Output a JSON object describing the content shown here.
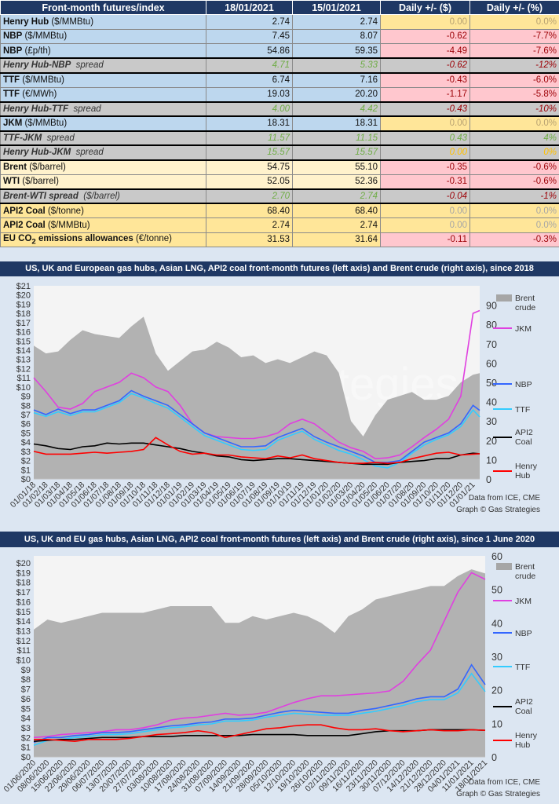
{
  "table": {
    "headers": [
      "Front-month futures/index",
      "18/01/2021",
      "15/01/2021",
      "Daily +/- ($)",
      "Daily +/- (%)"
    ],
    "rows": [
      {
        "type": "blue",
        "bold": "Henry Hub",
        "rest": " ($/MMBtu)",
        "v1": "2.74",
        "v2": "2.74",
        "d": "0.00",
        "p": "0.0%",
        "dc": "zero"
      },
      {
        "type": "blue",
        "bold": "NBP",
        "rest": " ($/MMBtu)",
        "v1": "7.45",
        "v2": "8.07",
        "d": "-0.62",
        "p": "-7.7%",
        "dc": "neg"
      },
      {
        "type": "blue",
        "bold": "NBP",
        "rest": " (£p/th)",
        "v1": "54.86",
        "v2": "59.35",
        "d": "-4.49",
        "p": "-7.6%",
        "dc": "neg"
      },
      {
        "type": "spread",
        "bold": "Henry Hub-NBP",
        "rest": "  spread",
        "v1": "4.71",
        "v2": "5.33",
        "d": "-0.62",
        "p": "-12%",
        "dc": "dneg"
      },
      {
        "type": "blue",
        "bold": "TTF",
        "rest": " ($/MMBtu)",
        "v1": "6.74",
        "v2": "7.16",
        "d": "-0.43",
        "p": "-6.0%",
        "dc": "neg"
      },
      {
        "type": "blue",
        "bold": "TTF",
        "rest": " (€/MWh)",
        "v1": "19.03",
        "v2": "20.20",
        "d": "-1.17",
        "p": "-5.8%",
        "dc": "neg"
      },
      {
        "type": "spread",
        "bold": "Henry Hub-TTF",
        "rest": "  spread",
        "v1": "4.00",
        "v2": "4.42",
        "d": "-0.43",
        "p": "-10%",
        "dc": "dneg"
      },
      {
        "type": "blue",
        "bold": "JKM",
        "rest": " ($/MMBtu)",
        "v1": "18.31",
        "v2": "18.31",
        "d": "0.00",
        "p": "0.0%",
        "dc": "zero"
      },
      {
        "type": "spread",
        "bold": "TTF-JKM",
        "rest": "  spread",
        "v1": "11.57",
        "v2": "11.15",
        "d": "0.43",
        "p": "4%",
        "dc": "dpos"
      },
      {
        "type": "spread",
        "bold": "Henry Hub-JKM",
        "rest": "  spread",
        "v1": "15.57",
        "v2": "15.57",
        "d": "0.00",
        "p": "0%",
        "dc": "dzero"
      },
      {
        "type": "oil",
        "bold": "Brent",
        "rest": " ($/barrel)",
        "v1": "54.75",
        "v2": "55.10",
        "d": "-0.35",
        "p": "-0.6%",
        "dc": "neg"
      },
      {
        "type": "oil",
        "bold": "WTI",
        "rest": " ($/barrel)",
        "v1": "52.05",
        "v2": "52.36",
        "d": "-0.31",
        "p": "-0.6%",
        "dc": "neg"
      },
      {
        "type": "spread",
        "bold": "Brent-WTI spread",
        "rest": "  ($/barrel)",
        "v1": "2.70",
        "v2": "2.74",
        "d": "-0.04",
        "p": "-1%",
        "dc": "dneg"
      },
      {
        "type": "coal",
        "bold": "API2 Coal",
        "rest": " ($/tonne)",
        "v1": "68.40",
        "v2": "68.40",
        "d": "0.00",
        "p": "0.0%",
        "dc": "zero"
      },
      {
        "type": "coal",
        "bold": "API2 Coal",
        "rest": " ($/MMBtu)",
        "v1": "2.74",
        "v2": "2.74",
        "d": "0.00",
        "p": "0.0%",
        "dc": "zero"
      },
      {
        "type": "coal",
        "bold": "EU CO",
        "sub": "2",
        "bold2": " emissions allowances",
        "rest": " (€/tonne)",
        "v1": "31.53",
        "v2": "31.64",
        "d": "-0.11",
        "p": "-0.3%",
        "dc": "neg"
      }
    ]
  },
  "colors": {
    "header": "#1f3864",
    "brent": "#a6a6a6",
    "jkm": "#e040e0",
    "nbp": "#3366ff",
    "ttf": "#33ccff",
    "coal": "#000000",
    "hh": "#ff0000"
  },
  "watermark": "Gas Strategies",
  "chart_data": [
    {
      "type": "line",
      "title": "US, UK and European gas hubs, Asian LNG, API2 coal front-month futures (left axis) and Brent crude (right axis), since 2018",
      "ylim_left": [
        0,
        21
      ],
      "ylim_right": [
        0,
        100
      ],
      "left_ticks": [
        "$0",
        "$1",
        "$2",
        "$3",
        "$4",
        "$5",
        "$6",
        "$7",
        "$8",
        "$9",
        "$10",
        "$11",
        "$12",
        "$13",
        "$14",
        "$15",
        "$16",
        "$17",
        "$18",
        "$19",
        "$20",
        "$21"
      ],
      "right_ticks": [
        "0",
        "10",
        "20",
        "30",
        "40",
        "50",
        "60",
        "70",
        "80",
        "90"
      ],
      "x_ticks": [
        "01/01/18",
        "01/02/18",
        "01/03/18",
        "01/04/18",
        "01/05/18",
        "01/06/18",
        "01/07/18",
        "01/08/18",
        "01/09/18",
        "01/10/18",
        "01/11/18",
        "01/12/18",
        "01/01/19",
        "01/02/19",
        "01/03/19",
        "01/04/19",
        "01/05/19",
        "01/06/19",
        "01/07/19",
        "01/08/19",
        "01/09/19",
        "01/10/19",
        "01/11/19",
        "01/12/19",
        "01/01/20",
        "01/02/20",
        "01/03/20",
        "01/04/20",
        "01/05/20",
        "01/06/20",
        "01/07/20",
        "01/08/20",
        "01/09/20",
        "01/10/20",
        "01/11/20",
        "01/12/20",
        "01/01/21"
      ],
      "x_end": "18/01/21",
      "series": [
        {
          "name": "Brent crude",
          "axis": "right",
          "kind": "area",
          "values": [
            69,
            65,
            66,
            72,
            77,
            75,
            74,
            73,
            79,
            84,
            65,
            56,
            61,
            66,
            67,
            71,
            68,
            63,
            64,
            60,
            62,
            60,
            63,
            66,
            64,
            55,
            30,
            22,
            33,
            41,
            43,
            45,
            41,
            41,
            43,
            50,
            54,
            54.75
          ]
        },
        {
          "name": "JKM",
          "axis": "left",
          "values": [
            11,
            9.5,
            7.8,
            7.6,
            8.2,
            9.5,
            10,
            10.5,
            11.5,
            11,
            10,
            9.5,
            8,
            6,
            5,
            4.6,
            4.5,
            4.4,
            4.4,
            4.6,
            5,
            6,
            6.5,
            6,
            5,
            4,
            3.4,
            3,
            2.2,
            2.3,
            2.6,
            3.5,
            4.5,
            5.4,
            6.5,
            9,
            18,
            18.31
          ]
        },
        {
          "name": "NBP",
          "axis": "left",
          "values": [
            7.5,
            7,
            7.6,
            7.1,
            7.5,
            7.5,
            8,
            8.5,
            9.6,
            9,
            8.5,
            8,
            7,
            6,
            5,
            4.5,
            4,
            3.5,
            3.5,
            3.6,
            4.5,
            5,
            5.5,
            4.6,
            4,
            3.5,
            3,
            2.5,
            1.8,
            1.8,
            2,
            3,
            4,
            4.5,
            5,
            6,
            8,
            7.45
          ]
        },
        {
          "name": "TTF",
          "axis": "left",
          "values": [
            7.2,
            6.8,
            7.3,
            6.9,
            7.3,
            7.3,
            7.8,
            8.3,
            9.3,
            8.8,
            8.2,
            7.7,
            6.7,
            5.7,
            4.7,
            4.2,
            3.7,
            3.2,
            3.1,
            3.2,
            4.2,
            4.7,
            5.2,
            4.3,
            3.7,
            3.1,
            2.7,
            2.1,
            1.4,
            1.2,
            1.8,
            2.8,
            3.7,
            4.3,
            4.8,
            5.7,
            7.5,
            6.74
          ]
        },
        {
          "name": "API2 Coal",
          "axis": "left",
          "values": [
            3.8,
            3.6,
            3.3,
            3.2,
            3.5,
            3.6,
            3.9,
            3.8,
            3.9,
            3.9,
            3.7,
            3.5,
            3.3,
            3,
            2.8,
            2.5,
            2.4,
            2.1,
            2,
            2.1,
            2.2,
            2.2,
            2.1,
            2,
            1.9,
            1.8,
            1.7,
            1.6,
            1.6,
            1.6,
            1.8,
            1.9,
            2,
            2.2,
            2.2,
            2.6,
            2.8,
            2.74
          ]
        },
        {
          "name": "Henry Hub",
          "axis": "left",
          "values": [
            3,
            2.7,
            2.7,
            2.7,
            2.8,
            2.9,
            2.8,
            2.9,
            3,
            3.2,
            4.5,
            3.7,
            3,
            2.7,
            2.8,
            2.6,
            2.6,
            2.4,
            2.3,
            2.2,
            2.5,
            2.3,
            2.6,
            2.2,
            2,
            1.8,
            1.7,
            1.7,
            1.8,
            1.7,
            1.8,
            2.2,
            2.5,
            2.8,
            2.9,
            2.6,
            2.7,
            2.74
          ]
        }
      ],
      "source": [
        "Data from ICE, CME",
        "Graph © Gas Strategies"
      ]
    },
    {
      "type": "line",
      "title": "US, UK and EU gas hubs, Asian LNG, API2 coal front-month futures (left axis) and Brent crude (right axis), since 1 June 2020",
      "ylim_left": [
        0,
        20
      ],
      "ylim_right": [
        0,
        60
      ],
      "left_ticks": [
        "$0",
        "$1",
        "$2",
        "$3",
        "$4",
        "$5",
        "$6",
        "$7",
        "$8",
        "$9",
        "$10",
        "$11",
        "$12",
        "$13",
        "$14",
        "$15",
        "$16",
        "$17",
        "$18",
        "$19",
        "$20"
      ],
      "right_ticks": [
        "0",
        "10",
        "20",
        "30",
        "40",
        "50",
        "60"
      ],
      "x_ticks": [
        "01/06/2020",
        "08/06/2020",
        "15/06/2020",
        "22/06/2020",
        "29/06/2020",
        "06/07/2020",
        "13/07/2020",
        "20/07/2020",
        "27/07/2020",
        "03/08/2020",
        "10/08/2020",
        "17/08/2020",
        "24/08/2020",
        "31/08/2020",
        "07/09/2020",
        "14/09/2020",
        "21/09/2020",
        "28/09/2020",
        "05/10/2020",
        "12/10/2020",
        "19/10/2020",
        "26/10/2020",
        "02/11/2020",
        "09/11/2020",
        "16/11/2020",
        "23/11/2020",
        "30/11/2020",
        "07/12/2020",
        "14/12/2020",
        "21/12/2020",
        "28/12/2020",
        "04/01/2021",
        "11/01/2021",
        "18/01/2021"
      ],
      "series": [
        {
          "name": "Brent crude",
          "axis": "right",
          "kind": "area",
          "values": [
            38,
            41,
            40,
            41,
            42,
            43,
            43,
            43,
            43,
            44,
            45,
            45,
            45,
            45,
            40,
            40,
            42,
            41,
            42,
            43,
            42,
            40,
            37,
            42,
            44,
            47,
            48,
            49,
            50,
            51,
            51,
            54,
            56,
            54.75
          ]
        },
        {
          "name": "JKM",
          "axis": "left",
          "values": [
            2,
            2.1,
            2.3,
            2.4,
            2.5,
            2.6,
            2.8,
            2.8,
            3,
            3.3,
            3.8,
            4,
            4.1,
            4.3,
            4.5,
            4.3,
            4.4,
            4.6,
            5.1,
            5.6,
            6,
            6.3,
            6.3,
            6.4,
            6.5,
            6.6,
            6.8,
            7.8,
            9.5,
            11,
            14,
            17,
            19,
            18.31
          ]
        },
        {
          "name": "NBP",
          "axis": "left",
          "values": [
            1.5,
            2,
            2,
            2.2,
            2.3,
            2.5,
            2.5,
            2.6,
            2.8,
            3,
            3.2,
            3.3,
            3.5,
            3.6,
            3.9,
            3.9,
            4,
            4.3,
            4.6,
            4.8,
            4.7,
            4.6,
            4.5,
            4.5,
            4.8,
            5,
            5.3,
            5.6,
            6,
            6.2,
            6.2,
            7,
            9.5,
            7.45
          ]
        },
        {
          "name": "TTF",
          "axis": "left",
          "values": [
            1.2,
            1.7,
            1.8,
            2,
            2.1,
            2.3,
            2.3,
            2.4,
            2.6,
            2.8,
            3,
            3.1,
            3.3,
            3.4,
            3.7,
            3.7,
            3.8,
            4.1,
            4.3,
            4.5,
            4.4,
            4.3,
            4.3,
            4.3,
            4.5,
            4.7,
            5,
            5.3,
            5.7,
            5.9,
            5.9,
            6.6,
            8.6,
            6.74
          ]
        },
        {
          "name": "API2 Coal",
          "axis": "left",
          "values": [
            1.6,
            1.7,
            1.8,
            1.8,
            1.9,
            2,
            2,
            2,
            2.1,
            2.1,
            2.1,
            2.2,
            2.2,
            2.2,
            2.2,
            2.2,
            2.3,
            2.3,
            2.3,
            2.3,
            2.2,
            2.2,
            2.2,
            2.2,
            2.4,
            2.6,
            2.7,
            2.7,
            2.7,
            2.8,
            2.8,
            2.8,
            2.8,
            2.74
          ]
        },
        {
          "name": "Henry Hub",
          "axis": "left",
          "values": [
            1.8,
            1.8,
            1.7,
            1.6,
            1.8,
            1.8,
            1.8,
            1.9,
            2.1,
            2.3,
            2.4,
            2.5,
            2.7,
            2.5,
            2,
            2.3,
            2.6,
            2.9,
            3,
            3.2,
            3.3,
            3.3,
            3,
            2.8,
            2.8,
            2.9,
            2.7,
            2.6,
            2.7,
            2.8,
            2.7,
            2.7,
            2.8,
            2.74
          ]
        }
      ],
      "source": [
        "Data from ICE, CME",
        "Graph © Gas Strategies"
      ]
    }
  ]
}
